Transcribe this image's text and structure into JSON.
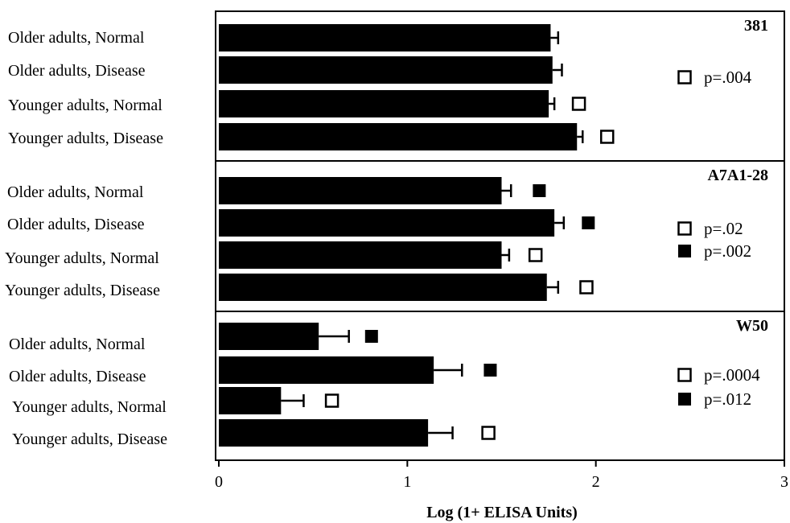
{
  "chart_data": {
    "type": "bar",
    "orientation": "horizontal",
    "xlabel": "Log (1+ ELISA Units)",
    "xlim": [
      0,
      3
    ],
    "xticks": [
      "0",
      "1",
      "2",
      "3"
    ],
    "categories": [
      "Older adults, Normal",
      "Older adults, Disease",
      "Younger adults, Normal",
      "Younger adults, Disease"
    ],
    "panels": [
      {
        "title": "381",
        "values": [
          1.76,
          1.77,
          1.75,
          1.9
        ],
        "errors": [
          0.04,
          0.05,
          0.03,
          0.03
        ],
        "markers": [
          {
            "category": 2,
            "type": "open",
            "x": 1.91
          },
          {
            "category": 3,
            "type": "open",
            "x": 2.06
          }
        ],
        "legend": [
          {
            "type": "open",
            "label": "p=.004"
          }
        ]
      },
      {
        "title": "A7A1-28",
        "values": [
          1.5,
          1.78,
          1.5,
          1.74
        ],
        "errors": [
          0.05,
          0.05,
          0.04,
          0.06
        ],
        "markers": [
          {
            "category": 0,
            "type": "filled",
            "x": 1.7
          },
          {
            "category": 1,
            "type": "filled",
            "x": 1.96
          },
          {
            "category": 2,
            "type": "open",
            "x": 1.68
          },
          {
            "category": 3,
            "type": "open",
            "x": 1.95
          }
        ],
        "legend": [
          {
            "type": "open",
            "label": "p=.02"
          },
          {
            "type": "filled",
            "label": "p=.002"
          }
        ]
      },
      {
        "title": "W50",
        "values": [
          0.53,
          1.14,
          0.33,
          1.11
        ],
        "errors": [
          0.16,
          0.15,
          0.12,
          0.13
        ],
        "markers": [
          {
            "category": 0,
            "type": "filled",
            "x": 0.81
          },
          {
            "category": 1,
            "type": "filled",
            "x": 1.44
          },
          {
            "category": 2,
            "type": "open",
            "x": 0.6
          },
          {
            "category": 3,
            "type": "open",
            "x": 1.43
          }
        ],
        "legend": [
          {
            "type": "open",
            "label": "p=.0004"
          },
          {
            "type": "filled",
            "label": "p=.012"
          }
        ]
      }
    ],
    "colors": {
      "bar": "#000000",
      "frame": "#000000",
      "background": "#ffffff"
    }
  }
}
